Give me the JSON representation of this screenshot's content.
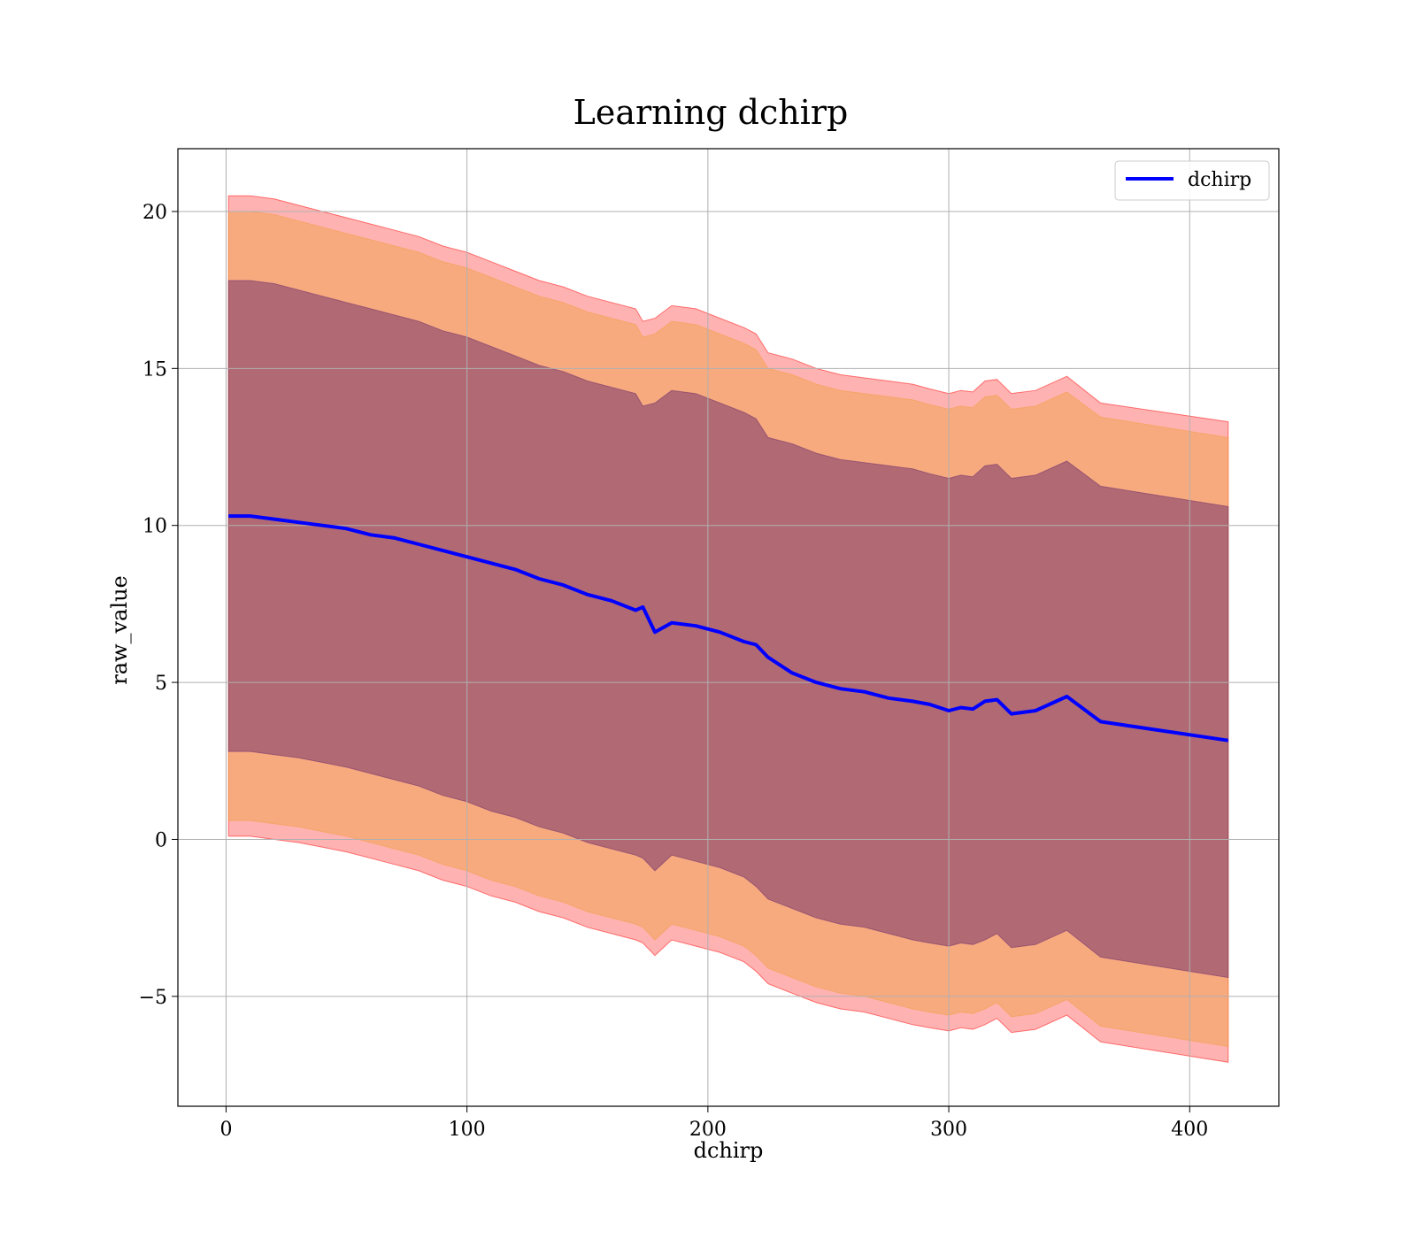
{
  "chart_data": {
    "type": "line",
    "title": "Learning dchirp",
    "xlabel": "dchirp",
    "ylabel": "raw_value",
    "xlim": [
      -20,
      437
    ],
    "ylim": [
      -8.5,
      22
    ],
    "xticks": [
      0,
      100,
      200,
      300,
      400
    ],
    "yticks": [
      -5,
      0,
      5,
      10,
      15,
      20
    ],
    "xtick_labels": [
      "0",
      "100",
      "200",
      "300",
      "400"
    ],
    "ytick_labels": [
      "−5",
      "0",
      "5",
      "10",
      "15",
      "20"
    ],
    "grid": true,
    "legend_position": "top-right",
    "colors": {
      "line": "#0000ff",
      "band_outer": "#ff0000",
      "band_middle": "#f0a040",
      "band_inner": "#6a2a6a"
    },
    "series": [
      {
        "name": "dchirp",
        "x": [
          1,
          10,
          20,
          30,
          40,
          50,
          60,
          70,
          80,
          90,
          100,
          110,
          120,
          130,
          140,
          150,
          160,
          170,
          173,
          178,
          185,
          195,
          205,
          215,
          220,
          225,
          235,
          245,
          255,
          265,
          275,
          285,
          292,
          300,
          305,
          310,
          315,
          320,
          326,
          336,
          349,
          363,
          416
        ],
        "y": [
          10.3,
          10.3,
          10.2,
          10.1,
          10.0,
          9.9,
          9.7,
          9.6,
          9.4,
          9.2,
          9.0,
          8.8,
          8.6,
          8.3,
          8.1,
          7.8,
          7.6,
          7.3,
          7.4,
          6.6,
          6.9,
          6.8,
          6.6,
          6.3,
          6.2,
          5.8,
          5.3,
          5.0,
          4.8,
          4.7,
          4.5,
          4.4,
          4.3,
          4.1,
          4.2,
          4.15,
          4.4,
          4.45,
          4.0,
          4.1,
          4.55,
          3.75,
          3.15
        ]
      }
    ],
    "bands": [
      {
        "level": "outer",
        "upper": [
          20.5,
          20.5,
          20.4,
          20.2,
          20.0,
          19.8,
          19.6,
          19.4,
          19.2,
          18.9,
          18.7,
          18.4,
          18.1,
          17.8,
          17.6,
          17.3,
          17.1,
          16.9,
          16.5,
          16.6,
          17.0,
          16.9,
          16.6,
          16.3,
          16.1,
          15.5,
          15.3,
          15.0,
          14.8,
          14.7,
          14.6,
          14.5,
          14.35,
          14.2,
          14.3,
          14.25,
          14.6,
          14.65,
          14.2,
          14.3,
          14.75,
          13.9,
          13.3
        ],
        "lower": [
          0.1,
          0.1,
          0.0,
          -0.1,
          -0.25,
          -0.4,
          -0.6,
          -0.8,
          -1.0,
          -1.3,
          -1.5,
          -1.8,
          -2.0,
          -2.3,
          -2.5,
          -2.8,
          -3.0,
          -3.2,
          -3.3,
          -3.7,
          -3.2,
          -3.4,
          -3.6,
          -3.9,
          -4.2,
          -4.6,
          -4.9,
          -5.2,
          -5.4,
          -5.5,
          -5.7,
          -5.9,
          -6.0,
          -6.1,
          -6.0,
          -6.05,
          -5.9,
          -5.7,
          -6.15,
          -6.05,
          -5.6,
          -6.45,
          -7.1
        ]
      },
      {
        "level": "middle",
        "upper": [
          20.0,
          20.0,
          19.9,
          19.7,
          19.5,
          19.3,
          19.1,
          18.9,
          18.7,
          18.4,
          18.2,
          17.9,
          17.6,
          17.3,
          17.1,
          16.8,
          16.6,
          16.4,
          16.0,
          16.1,
          16.5,
          16.4,
          16.1,
          15.8,
          15.6,
          15.0,
          14.8,
          14.5,
          14.3,
          14.2,
          14.1,
          14.0,
          13.85,
          13.7,
          13.8,
          13.75,
          14.1,
          14.15,
          13.7,
          13.8,
          14.25,
          13.45,
          12.8
        ],
        "lower": [
          0.6,
          0.6,
          0.5,
          0.4,
          0.25,
          0.1,
          -0.1,
          -0.3,
          -0.5,
          -0.8,
          -1.0,
          -1.3,
          -1.5,
          -1.8,
          -2.0,
          -2.3,
          -2.5,
          -2.7,
          -2.8,
          -3.2,
          -2.7,
          -2.9,
          -3.1,
          -3.4,
          -3.7,
          -4.1,
          -4.4,
          -4.7,
          -4.9,
          -5.0,
          -5.2,
          -5.4,
          -5.5,
          -5.6,
          -5.5,
          -5.55,
          -5.4,
          -5.2,
          -5.65,
          -5.55,
          -5.1,
          -5.95,
          -6.6
        ]
      },
      {
        "level": "inner",
        "upper": [
          17.8,
          17.8,
          17.7,
          17.5,
          17.3,
          17.1,
          16.9,
          16.7,
          16.5,
          16.2,
          16.0,
          15.7,
          15.4,
          15.1,
          14.9,
          14.6,
          14.4,
          14.2,
          13.8,
          13.9,
          14.3,
          14.2,
          13.9,
          13.6,
          13.4,
          12.8,
          12.6,
          12.3,
          12.1,
          12.0,
          11.9,
          11.8,
          11.65,
          11.5,
          11.6,
          11.55,
          11.9,
          11.95,
          11.5,
          11.6,
          12.05,
          11.25,
          10.6
        ],
        "lower": [
          2.8,
          2.8,
          2.7,
          2.6,
          2.45,
          2.3,
          2.1,
          1.9,
          1.7,
          1.4,
          1.2,
          0.9,
          0.7,
          0.4,
          0.2,
          -0.1,
          -0.3,
          -0.5,
          -0.6,
          -1.0,
          -0.5,
          -0.7,
          -0.9,
          -1.2,
          -1.5,
          -1.9,
          -2.2,
          -2.5,
          -2.7,
          -2.8,
          -3.0,
          -3.2,
          -3.3,
          -3.4,
          -3.3,
          -3.35,
          -3.2,
          -3.0,
          -3.45,
          -3.35,
          -2.9,
          -3.75,
          -4.4
        ]
      }
    ]
  }
}
